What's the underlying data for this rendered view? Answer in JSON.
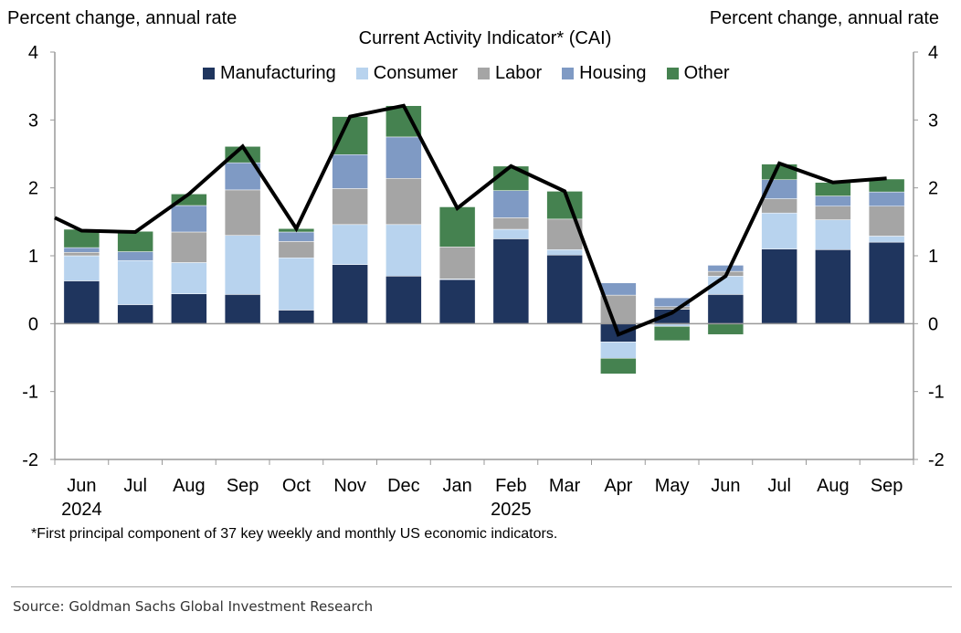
{
  "chart_data": {
    "type": "bar",
    "stacked": true,
    "title": "Current Activity Indicator* (CAI)",
    "ylabel_left": "Percent change, annual rate",
    "ylabel_right": "Percent change, annual rate",
    "ylim": [
      -2,
      4
    ],
    "yticks": [
      "-2",
      "-1",
      "0",
      "1",
      "2",
      "3",
      "4"
    ],
    "categories": [
      "Jun",
      "Jul",
      "Aug",
      "Sep",
      "Oct",
      "Nov",
      "Dec",
      "Jan",
      "Feb",
      "Mar",
      "Apr",
      "May",
      "Jun",
      "Jul",
      "Aug",
      "Sep"
    ],
    "year_labels": [
      {
        "index": 0,
        "label": "2024"
      },
      {
        "index": 8,
        "label": "2025"
      }
    ],
    "series": [
      {
        "name": "Manufacturing",
        "color": "#1f355e",
        "values": [
          0.63,
          0.28,
          0.44,
          0.43,
          0.2,
          0.87,
          0.7,
          0.65,
          1.25,
          1.01,
          -0.27,
          0.21,
          0.43,
          1.1,
          1.09,
          1.2
        ]
      },
      {
        "name": "Consumer",
        "color": "#b8d3ee",
        "values": [
          0.37,
          0.65,
          0.46,
          0.87,
          0.77,
          0.59,
          0.76,
          0.01,
          0.14,
          0.08,
          -0.24,
          -0.04,
          0.27,
          0.53,
          0.44,
          0.09
        ]
      },
      {
        "name": "Labor",
        "color": "#a5a5a5",
        "values": [
          0.05,
          0.0,
          0.45,
          0.67,
          0.24,
          0.53,
          0.68,
          0.47,
          0.17,
          0.45,
          0.42,
          0.04,
          0.07,
          0.21,
          0.2,
          0.44
        ]
      },
      {
        "name": "Housing",
        "color": "#7f9ac4",
        "values": [
          0.07,
          0.13,
          0.39,
          0.4,
          0.14,
          0.5,
          0.61,
          0.0,
          0.4,
          0.0,
          0.18,
          0.13,
          0.09,
          0.28,
          0.15,
          0.21
        ]
      },
      {
        "name": "Other",
        "color": "#458250",
        "values": [
          0.27,
          0.3,
          0.17,
          0.24,
          0.05,
          0.56,
          0.46,
          0.59,
          0.36,
          0.41,
          -0.23,
          -0.21,
          -0.16,
          0.23,
          0.2,
          0.19
        ]
      }
    ],
    "line": {
      "name": "CAI",
      "color": "#000000",
      "prior_value": 1.56,
      "values": [
        1.37,
        1.35,
        1.91,
        2.61,
        1.4,
        3.05,
        3.21,
        1.7,
        2.32,
        1.95,
        -0.16,
        0.16,
        0.7,
        2.36,
        2.08,
        2.14
      ]
    },
    "footnote": "*First principal component of 37 key weekly and monthly US economic indicators.",
    "legend_placement": "top-center"
  },
  "source": "Source: Goldman Sachs Global Investment Research"
}
